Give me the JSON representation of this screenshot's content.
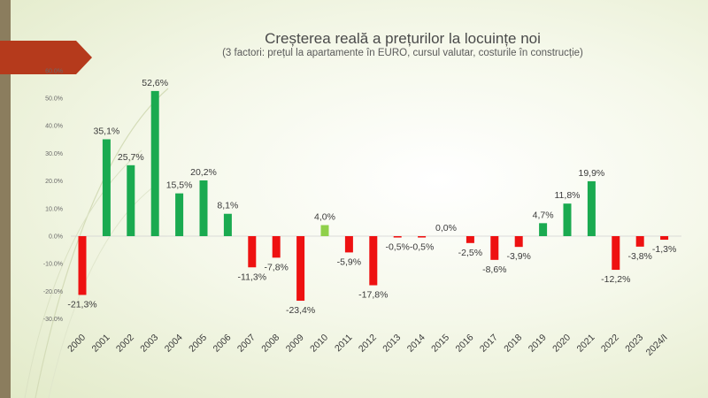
{
  "slide": {
    "title": "Creșterea reală a prețurilor la locuințe noi",
    "subtitle": "(3 factori: prețul la apartamente în EURO, cursul valutar, costurile în construcție)"
  },
  "colors": {
    "positive": "#1aaa50",
    "negative": "#ee1111",
    "highlight": "#8fd04a",
    "sidebar": "#8b7d5e",
    "arrow": "#b53a1c"
  },
  "chart_data": {
    "type": "bar",
    "title": "Creșterea reală a prețurilor la locuințe noi",
    "subtitle": "(3 factori: prețul la apartamente în EURO, cursul valutar, costurile în construcție)",
    "categories": [
      "2000",
      "2001",
      "2002",
      "2003",
      "2004",
      "2005",
      "2006",
      "2007",
      "2008",
      "2009",
      "2010",
      "2011",
      "2012",
      "2013",
      "2014",
      "2015",
      "2016",
      "2017",
      "2018",
      "2019",
      "2020",
      "2021",
      "2022",
      "2023",
      "2024/I"
    ],
    "values": [
      -21.3,
      35.1,
      25.7,
      52.6,
      15.5,
      20.2,
      8.1,
      -11.3,
      -7.8,
      -23.4,
      4.0,
      -5.9,
      -17.8,
      -0.5,
      -0.5,
      0.0,
      -2.5,
      -8.6,
      -3.9,
      4.7,
      11.8,
      19.9,
      -12.2,
      -3.8,
      -1.3
    ],
    "data_labels": [
      "-21,3%",
      "35,1%",
      "25,7%",
      "52,6%",
      "15,5%",
      "20,2%",
      "8,1%",
      "-11,3%",
      "-7,8%",
      "-23,4%",
      "4,0%",
      "-5,9%",
      "-17,8%",
      "-0,5%",
      "-0,5%",
      "0,0%",
      "-2,5%",
      "-8,6%",
      "-3,9%",
      "4,7%",
      "11,8%",
      "19,9%",
      "-12,2%",
      "-3,8%",
      "-1,3%"
    ],
    "highlight_category": "2010",
    "yticks": [
      60,
      50,
      40,
      30,
      20,
      10,
      0,
      -10,
      -20,
      -30
    ],
    "ytick_labels": [
      "60.0%",
      "50.0%",
      "40.0%",
      "30.0%",
      "20.0%",
      "10.0%",
      "0.0%",
      "-10.0%",
      "-20.0%",
      "-30.0%"
    ],
    "ylim": [
      -30,
      60
    ],
    "xlabel": "",
    "ylabel": "",
    "grid": false,
    "legend": "none"
  }
}
